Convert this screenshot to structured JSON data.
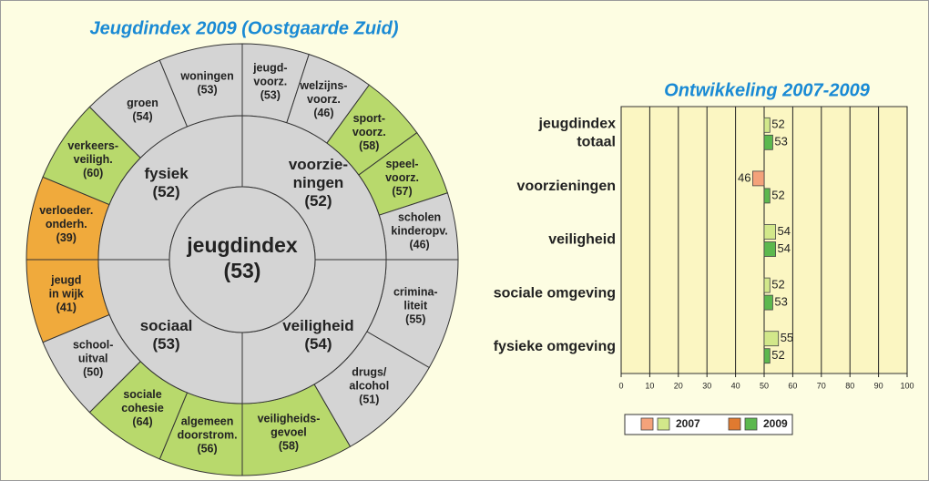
{
  "sunburst": {
    "title": "Jeugdindex 2009 (Oostgaarde Zuid)",
    "center": {
      "label": [
        "jeugdindex"
      ],
      "value": "(53)"
    },
    "domains": [
      {
        "label": [
          "voorzie-",
          "ningen"
        ],
        "value": "(52)",
        "items": [
          {
            "label": [
              "jeugd-",
              "voorz."
            ],
            "value": "(53)",
            "color": "#d4d4d4"
          },
          {
            "label": [
              "welzijns-",
              "voorz."
            ],
            "value": "(46)",
            "color": "#d4d4d4"
          },
          {
            "label": [
              "sport-",
              "voorz."
            ],
            "value": "(58)",
            "color": "#b8d96c"
          },
          {
            "label": [
              "speel-",
              "voorz."
            ],
            "value": "(57)",
            "color": "#b8d96c"
          },
          {
            "label": [
              "scholen",
              "kinderopv."
            ],
            "value": "(46)",
            "color": "#d4d4d4"
          }
        ]
      },
      {
        "label": [
          "veiligheid"
        ],
        "value": "(54)",
        "items": [
          {
            "label": [
              "crimina-",
              "liteit"
            ],
            "value": "(55)",
            "color": "#d4d4d4"
          },
          {
            "label": [
              "drugs/",
              "alcohol"
            ],
            "value": "(51)",
            "color": "#d4d4d4"
          },
          {
            "label": [
              "veiligheids-",
              "gevoel"
            ],
            "value": "(58)",
            "color": "#b8d96c"
          }
        ]
      },
      {
        "label": [
          "sociaal"
        ],
        "value": "(53)",
        "items": [
          {
            "label": [
              "algemeen",
              "doorstrom."
            ],
            "value": "(56)",
            "color": "#b8d96c"
          },
          {
            "label": [
              "sociale",
              "cohesie"
            ],
            "value": "(64)",
            "color": "#b8d96c"
          },
          {
            "label": [
              "school-",
              "uitval"
            ],
            "value": "(50)",
            "color": "#d4d4d4"
          },
          {
            "label": [
              "jeugd",
              "in wijk"
            ],
            "value": "(41)",
            "color": "#f0aa3c"
          }
        ]
      },
      {
        "label": [
          "fysiek"
        ],
        "value": "(52)",
        "items": [
          {
            "label": [
              "verloeder.",
              "onderh."
            ],
            "value": "(39)",
            "color": "#f0aa3c"
          },
          {
            "label": [
              "verkeers-",
              "veiligh."
            ],
            "value": "(60)",
            "color": "#b8d96c"
          },
          {
            "label": [
              "groen"
            ],
            "value": "(54)",
            "color": "#d4d4d4"
          },
          {
            "label": [
              "woningen"
            ],
            "value": "(53)",
            "color": "#d4d4d4"
          }
        ]
      }
    ]
  },
  "chart_data": {
    "type": "bar",
    "orientation": "horizontal",
    "title": "Ontwikkeling 2007-2009",
    "categories": [
      [
        "jeugdindex",
        "totaal"
      ],
      [
        "voorzieningen"
      ],
      [
        "veiligheid"
      ],
      [
        "sociale omgeving"
      ],
      [
        "fysieke omgeving"
      ]
    ],
    "base": 50,
    "series": [
      {
        "name": "2007",
        "values": [
          52,
          46,
          54,
          52,
          55
        ],
        "colors": [
          "#d2e88a",
          "#f4a27a",
          "#d2e88a",
          "#d2e88a",
          "#d2e88a"
        ],
        "legend_colors": [
          "#f4a27a",
          "#d2e88a"
        ]
      },
      {
        "name": "2009",
        "values": [
          53,
          52,
          54,
          53,
          52
        ],
        "colors": [
          "#5cb84e",
          "#5cb84e",
          "#5cb84e",
          "#5cb84e",
          "#5cb84e"
        ],
        "legend_colors": [
          "#e07a30",
          "#5cb84e"
        ]
      }
    ],
    "xlim": [
      0,
      100
    ],
    "xticks": [
      0,
      10,
      20,
      30,
      40,
      50,
      60,
      70,
      80,
      90,
      100
    ],
    "grid": true
  }
}
